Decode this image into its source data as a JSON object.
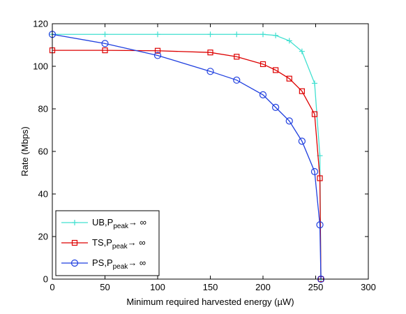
{
  "chart_data": {
    "type": "line",
    "title": "",
    "xlabel": "Minimum required harvested energy (µW)",
    "ylabel": "Rate (Mbps)",
    "xlim": [
      0,
      300
    ],
    "ylim": [
      0,
      120
    ],
    "xticks": [
      0,
      50,
      100,
      150,
      200,
      250,
      300
    ],
    "yticks": [
      0,
      20,
      40,
      60,
      80,
      100,
      120
    ],
    "grid": false,
    "legend_position": "bottom-left",
    "series": [
      {
        "name_main": "UB,P",
        "name_sub": "peak",
        "name_tail": "→ ∞",
        "color": "#40E0D0",
        "marker": "plus",
        "x": [
          0,
          50,
          100,
          150,
          175,
          200,
          212,
          225,
          237,
          249,
          254,
          255
        ],
        "y": [
          115,
          115,
          115,
          115,
          115,
          115,
          114.5,
          112,
          107,
          92,
          58,
          0
        ]
      },
      {
        "name_main": "TS,P",
        "name_sub": "peak",
        "name_tail": "→ ∞",
        "color": "#DD0000",
        "marker": "square",
        "x": [
          0,
          50,
          100,
          150,
          175,
          200,
          212,
          225,
          237,
          249,
          254,
          255
        ],
        "y": [
          107.5,
          107.5,
          107.3,
          106.5,
          104.5,
          101,
          98.2,
          94.2,
          88.3,
          77.5,
          47.4,
          0
        ]
      },
      {
        "name_main": "PS,P",
        "name_sub": "peak",
        "name_tail": "→ ∞",
        "color": "#1F3FDF",
        "marker": "circle",
        "x": [
          0,
          50,
          100,
          150,
          175,
          200,
          212,
          225,
          237,
          249,
          254,
          255
        ],
        "y": [
          115,
          110.7,
          105.1,
          97.6,
          93.5,
          86.6,
          80.7,
          74.3,
          64.8,
          50.5,
          25.5,
          0
        ]
      }
    ]
  }
}
